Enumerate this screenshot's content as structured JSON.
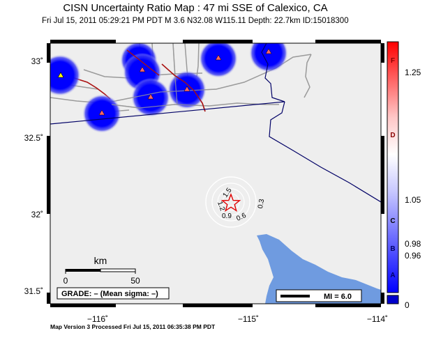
{
  "header": {
    "title": "CISN Uncertainty Ratio Map : 47 mi SSE of Calexico, CA",
    "subtitle": "Fri Jul 15, 2011 05:29:21 PM PDT   M 3.6   N32.08 W115.11   Depth: 22.7km   ID:15018300"
  },
  "map": {
    "lat_labels": [
      "33˚",
      "32.5˚",
      "32˚",
      "31.5˚"
    ],
    "lon_labels": [
      "−116˚",
      "−115˚",
      "−114˚"
    ],
    "contour_labels": [
      "1.5",
      "1.2",
      "0.9",
      "0.6",
      "0.3"
    ],
    "scale_bar": {
      "unit": "km",
      "start": "0",
      "end": "50"
    },
    "grade_box": "GRADE: – (Mean sigma: –)",
    "mi_legend": "MI = 6.0",
    "epicenter_icon": "star-icon",
    "station_icon": "triangle-icon"
  },
  "colorbar": {
    "letters": [
      "F",
      "D",
      "C",
      "B",
      "A"
    ],
    "values": [
      "1.25",
      "1.05",
      "0.98",
      "0.96",
      "0"
    ]
  },
  "footer": {
    "text": "Map Version 3 Processed Fri Jul 15, 2011 06:35:38 PM PDT"
  },
  "colors": {
    "land": "#eeeeee",
    "water": "#6f9be0",
    "high_ratio": "#ff0000",
    "low_ratio": "#0000ff",
    "fault": "#aa0000",
    "road": "#999999",
    "border": "#000066"
  }
}
